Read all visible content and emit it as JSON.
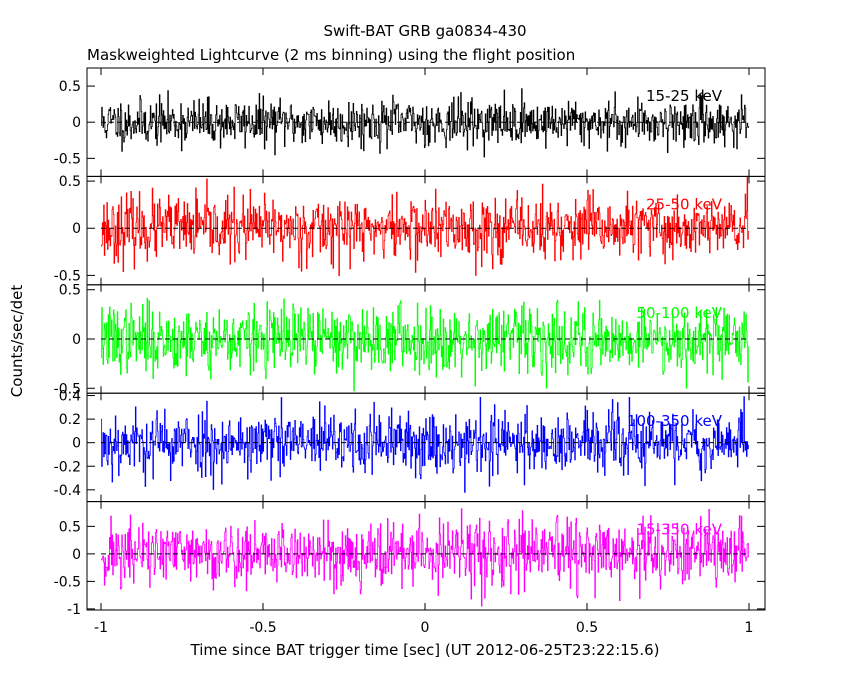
{
  "title": "Swift-BAT GRB ga0834-430",
  "subtitle": "Maskweighted Lightcurve (2 ms binning) using the flight position",
  "ylabel": "Counts/sec/det",
  "xlabel": "Time since BAT trigger time [sec] (UT 2012-06-25T23:22:15.6)",
  "chart_data": {
    "type": "line",
    "x_range": [
      -1,
      1
    ],
    "x_ticks": [
      "-1",
      "-0.5",
      "0",
      "0.5",
      "1"
    ],
    "x_tick_values": [
      -1,
      -0.5,
      0,
      0.5,
      1
    ],
    "bin_seconds": 0.002,
    "panels": [
      {
        "band": "15-25 keV",
        "color": "#000000",
        "ylim": [
          -0.75,
          0.75
        ],
        "y_ticks": [
          "-0.5",
          "0",
          "0.5"
        ],
        "y_tick_values": [
          -0.5,
          0,
          0.5
        ],
        "noise_sigma": 0.16,
        "seed": 11
      },
      {
        "band": "25-50 keV",
        "color": "#ff0000",
        "ylim": [
          -0.6,
          0.55
        ],
        "y_ticks": [
          "-0.5",
          "0",
          "0.5"
        ],
        "y_tick_values": [
          -0.5,
          0,
          0.5
        ],
        "noise_sigma": 0.17,
        "seed": 23
      },
      {
        "band": "50-100 keV",
        "color": "#00ff00",
        "ylim": [
          -0.55,
          0.55
        ],
        "y_ticks": [
          "-0.5",
          "0",
          "0.5"
        ],
        "y_tick_values": [
          -0.5,
          0,
          0.5
        ],
        "noise_sigma": 0.17,
        "seed": 37
      },
      {
        "band": "100-350 keV",
        "color": "#0000ff",
        "ylim": [
          -0.5,
          0.42
        ],
        "y_ticks": [
          "-0.4",
          "-0.2",
          "0",
          "0.2",
          "0.4"
        ],
        "y_tick_values": [
          -0.4,
          -0.2,
          0,
          0.2,
          0.4
        ],
        "noise_sigma": 0.14,
        "seed": 53
      },
      {
        "band": "15-350 keV",
        "color": "#ff00ff",
        "ylim": [
          -1.02,
          0.95
        ],
        "y_ticks": [
          "-1",
          "-0.5",
          "0",
          "0.5"
        ],
        "y_tick_values": [
          -1,
          -0.5,
          0,
          0.5
        ],
        "noise_sigma": 0.3,
        "seed": 71
      }
    ]
  }
}
